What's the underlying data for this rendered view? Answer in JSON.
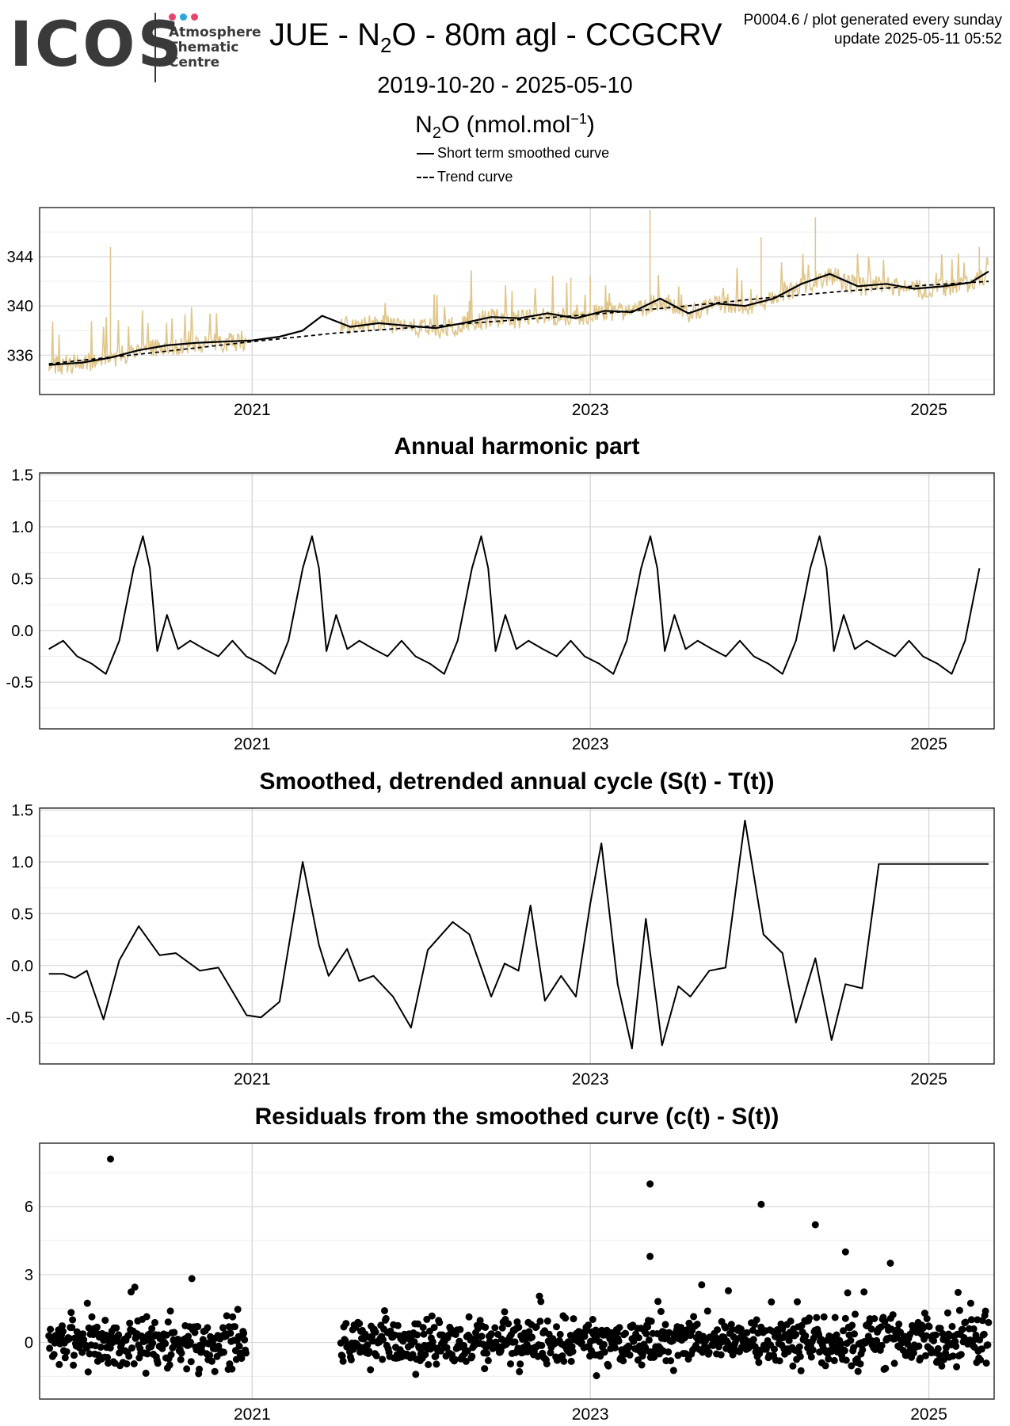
{
  "header": {
    "logo_text": "ICOS",
    "logo_sub": [
      "Atmosphere",
      "Thematic",
      "Centre"
    ],
    "logo_dot_colors": [
      "#e6456f",
      "#29a8e0",
      "#e6456f"
    ],
    "title_pre": "JUE - N",
    "title_sub": "2",
    "title_post": "O - 80m agl - CCGCRV",
    "meta_line1": "P0004.6 / plot generated every sunday",
    "meta_line2": "update  2025-05-11 05:52",
    "date_range": "2019-10-20 - 2025-05-10",
    "units_pre": "N",
    "units_sub": "2",
    "units_mid": "O (nmol.mol",
    "units_sup": "−1",
    "units_post": ")",
    "legend": [
      {
        "label": "Short term smoothed curve",
        "style": "solid"
      },
      {
        "label": "Trend curve",
        "style": "dashed"
      }
    ]
  },
  "colors": {
    "raw_series": "#e0c68a",
    "curve": "#000000",
    "grid_major": "#d9d9d9",
    "grid_minor": "#efefef",
    "panel_border": "#333333"
  },
  "chart_data": [
    {
      "type": "line",
      "title": "",
      "x_range": [
        "2019-10-20",
        "2025-05-10"
      ],
      "x_ticks": [
        "2021",
        "2023",
        "2025"
      ],
      "ylim": [
        332.8,
        348.0
      ],
      "y_ticks": [
        336,
        340,
        344
      ],
      "series": [
        {
          "name": "Short term smoothed curve",
          "style": "solid",
          "x": [
            "2019-10-20",
            "2020-01-01",
            "2020-03-01",
            "2020-05-01",
            "2020-07-01",
            "2020-09-01",
            "2020-11-01",
            "2021-01-01",
            "2021-03-01",
            "2021-04-20",
            "2021-06-01",
            "2021-08-01",
            "2021-10-01",
            "2021-12-01",
            "2022-02-01",
            "2022-04-01",
            "2022-06-01",
            "2022-08-01",
            "2022-10-01",
            "2022-12-01",
            "2023-02-01",
            "2023-04-01",
            "2023-06-01",
            "2023-08-01",
            "2023-10-01",
            "2023-12-01",
            "2024-02-01",
            "2024-04-01",
            "2024-06-01",
            "2024-08-01",
            "2024-10-01",
            "2024-12-01",
            "2025-02-01",
            "2025-04-01",
            "2025-05-10"
          ],
          "values": [
            335.2,
            335.4,
            335.8,
            336.4,
            336.8,
            337.0,
            337.1,
            337.2,
            337.5,
            338.0,
            339.2,
            338.3,
            338.6,
            338.4,
            338.2,
            338.6,
            339.1,
            339.0,
            339.4,
            339.0,
            339.6,
            339.5,
            340.6,
            339.4,
            340.2,
            340.0,
            340.6,
            341.8,
            342.6,
            341.6,
            341.8,
            341.4,
            341.6,
            341.9,
            342.8
          ]
        },
        {
          "name": "Trend curve",
          "style": "dashed",
          "x": [
            "2019-10-20",
            "2020-06-01",
            "2021-01-01",
            "2021-07-01",
            "2022-01-01",
            "2022-07-01",
            "2023-01-01",
            "2023-07-01",
            "2024-01-01",
            "2024-07-01",
            "2025-01-01",
            "2025-05-10"
          ],
          "values": [
            335.3,
            336.2,
            337.1,
            337.8,
            338.3,
            338.8,
            339.3,
            339.9,
            340.6,
            341.2,
            341.7,
            342.0
          ]
        },
        {
          "name": "",
          "style": "raw",
          "x": [],
          "values": []
        }
      ]
    },
    {
      "type": "line",
      "title": "Annual harmonic part",
      "x_range": [
        "2019-10-20",
        "2025-05-10"
      ],
      "x_ticks": [
        "2021",
        "2023",
        "2025"
      ],
      "ylim": [
        -0.95,
        1.52
      ],
      "y_ticks": [
        -0.5,
        0.0,
        0.5,
        1.0,
        1.5
      ],
      "y_tick_labels": [
        "-0.5",
        "0.0",
        "0.5",
        "1.0",
        "1.5"
      ],
      "series": [
        {
          "name": "",
          "x": [
            "2019-10-20",
            "2019-11-20",
            "2019-12-20",
            "2020-01-20",
            "2020-02-20",
            "2020-03-20",
            "2020-04-20",
            "2020-05-10",
            "2020-05-25",
            "2020-06-10",
            "2020-07-01",
            "2020-07-25",
            "2020-08-20",
            "2020-09-20",
            "2020-10-20"
          ],
          "values": [
            -0.18,
            -0.1,
            -0.25,
            -0.32,
            -0.42,
            -0.1,
            0.6,
            0.91,
            0.6,
            -0.2,
            0.15,
            -0.18,
            -0.1,
            -0.18,
            -0.25
          ]
        }
      ]
    },
    {
      "type": "line",
      "title": "Smoothed, detrended annual cycle (S(t) - T(t))",
      "x_range": [
        "2019-10-20",
        "2025-05-10"
      ],
      "x_ticks": [
        "2021",
        "2023",
        "2025"
      ],
      "ylim": [
        -0.95,
        1.52
      ],
      "y_ticks": [
        -0.5,
        0.0,
        0.5,
        1.0,
        1.5
      ],
      "y_tick_labels": [
        "-0.5",
        "0.0",
        "0.5",
        "1.0",
        "1.5"
      ],
      "series": [
        {
          "name": "",
          "x": [
            "2019-10-20",
            "2019-11-20",
            "2019-12-15",
            "2020-01-10",
            "2020-02-15",
            "2020-03-20",
            "2020-05-01",
            "2020-06-15",
            "2020-07-20",
            "2020-09-10",
            "2020-10-20",
            "2020-12-20",
            "2021-01-20",
            "2021-03-01",
            "2021-04-20",
            "2021-05-25",
            "2021-06-15",
            "2021-07-25",
            "2021-08-20",
            "2021-09-20",
            "2021-11-01",
            "2021-12-10",
            "2022-01-15",
            "2022-03-10",
            "2022-04-15",
            "2022-06-01",
            "2022-06-30",
            "2022-07-30",
            "2022-08-25",
            "2022-09-25",
            "2022-10-30",
            "2022-12-01",
            "2023-01-01",
            "2023-01-25",
            "2023-03-01",
            "2023-04-01",
            "2023-05-01",
            "2023-06-05",
            "2023-07-10",
            "2023-08-05",
            "2023-09-15",
            "2023-10-20",
            "2023-12-01",
            "2024-01-10",
            "2024-02-20",
            "2024-03-20",
            "2024-05-01",
            "2024-06-05",
            "2024-07-05",
            "2024-08-10",
            "2024-09-15",
            "2024-10-20",
            "2024-11-25",
            "2025-01-05",
            "2025-02-10",
            "2025-03-10",
            "2025-05-10"
          ],
          "values": [
            -0.08,
            -0.08,
            -0.12,
            -0.05,
            -0.52,
            0.05,
            0.38,
            0.1,
            0.12,
            -0.05,
            -0.02,
            -0.48,
            -0.5,
            -0.35,
            1.0,
            0.2,
            -0.1,
            0.16,
            -0.15,
            -0.1,
            -0.3,
            -0.6,
            0.15,
            0.42,
            0.3,
            -0.3,
            0.02,
            -0.05,
            0.58,
            -0.34,
            -0.1,
            -0.3,
            0.6,
            1.18,
            -0.18,
            -0.8,
            0.45,
            -0.77,
            -0.2,
            -0.3,
            -0.05,
            -0.02,
            1.4,
            0.3,
            0.12,
            -0.55,
            0.07,
            -0.72,
            -0.18,
            -0.22,
            0.98,
            0.98,
            0.98,
            0.98,
            0.98,
            0.98,
            0.98
          ]
        }
      ]
    },
    {
      "type": "scatter",
      "title": "Residuals from the smoothed curve (c(t) - S(t))",
      "x_range": [
        "2019-10-20",
        "2025-05-10"
      ],
      "x_ticks": [
        "2021",
        "2023",
        "2025"
      ],
      "ylim": [
        -2.5,
        8.8
      ],
      "y_ticks": [
        0,
        3,
        6
      ],
      "series": [
        {
          "name": "",
          "x": [
            "2020-03-01",
            "2023-05-10",
            "2024-01-05",
            "2024-05-01",
            "2024-07-05",
            "2023-05-10",
            "2024-10-10"
          ],
          "values": [
            8.1,
            7.0,
            6.1,
            5.2,
            4.0,
            3.8,
            3.5
          ]
        }
      ]
    }
  ]
}
